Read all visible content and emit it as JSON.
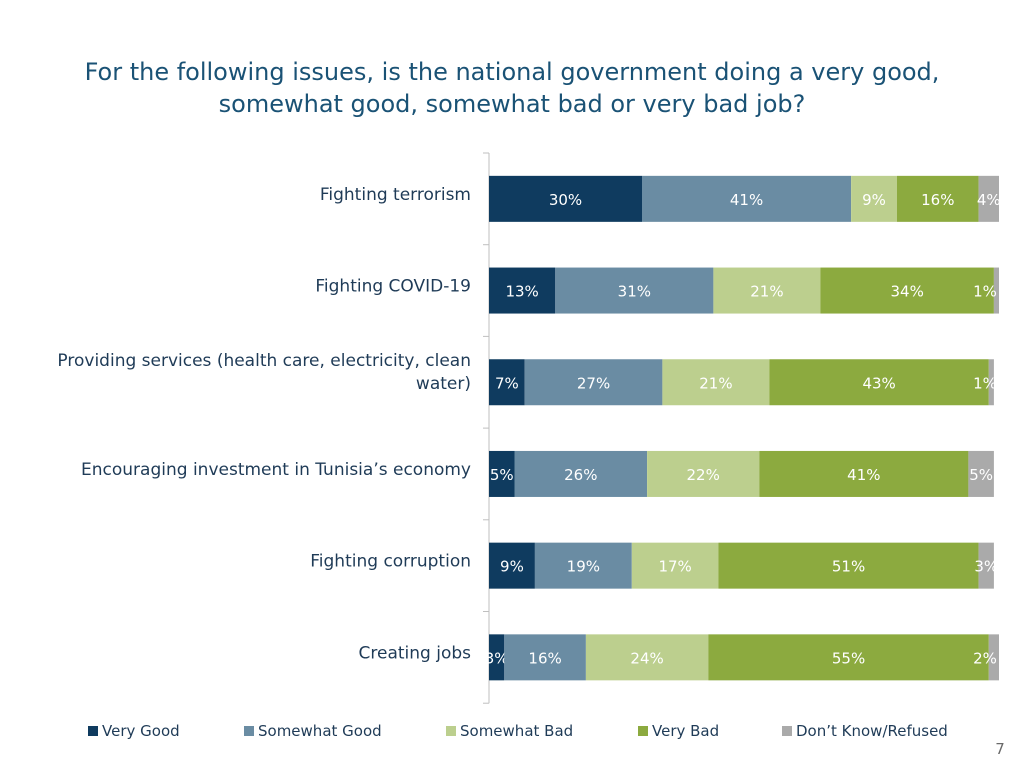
{
  "page_number": "7",
  "chart_data": {
    "type": "bar",
    "orientation": "horizontal",
    "stacked": true,
    "title_lines": [
      "For the following issues, is the national government doing a very good,",
      "somewhat good, somewhat bad or very bad job?"
    ],
    "categories": [
      "Fighting terrorism",
      "Fighting COVID-19",
      "Providing services (health care, electricity, clean water)",
      "Encouraging investment in Tunisia’s economy",
      "Fighting corruption",
      "Creating jobs"
    ],
    "category_label_lines": [
      [
        "Fighting terrorism"
      ],
      [
        "Fighting COVID-19"
      ],
      [
        "Providing services (health care, electricity, clean",
        "water)"
      ],
      [
        "Encouraging investment in Tunisia’s economy"
      ],
      [
        "Fighting corruption"
      ],
      [
        "Creating jobs"
      ]
    ],
    "xlim": [
      0,
      100
    ],
    "value_suffix": "%",
    "series": [
      {
        "name": "Very Good",
        "color": "#0f3b5f",
        "label_color": "#ffffff",
        "values": [
          30,
          13,
          7,
          5,
          9,
          3
        ]
      },
      {
        "name": "Somewhat Good",
        "color": "#6a8ca3",
        "label_color": "#ffffff",
        "values": [
          41,
          31,
          27,
          26,
          19,
          16
        ]
      },
      {
        "name": "Somewhat Bad",
        "color": "#bccf8e",
        "label_color": "#ffffff",
        "values": [
          9,
          21,
          21,
          22,
          17,
          24
        ]
      },
      {
        "name": "Very Bad",
        "color": "#8caa3f",
        "label_color": "#ffffff",
        "values": [
          16,
          34,
          43,
          41,
          51,
          55
        ]
      },
      {
        "name": "Don’t Know/Refused",
        "color": "#aaaaaa",
        "label_color": "#ffffff",
        "values": [
          4,
          1,
          1,
          5,
          3,
          2
        ]
      }
    ]
  }
}
